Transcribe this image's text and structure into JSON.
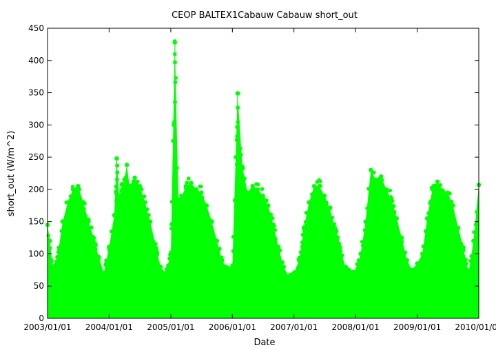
{
  "chart_data": {
    "type": "scatter",
    "title": "CEOP BALTEX1Cabauw Cabauw  short_out",
    "xlabel": "Date",
    "ylabel": "short_out (W/m^2)",
    "xlim": [
      "2003-01-01",
      "2010-01-01"
    ],
    "ylim": [
      0,
      450
    ],
    "x_ticks": [
      "2003/01/01",
      "2004/01/01",
      "2005/01/01",
      "2006/01/01",
      "2007/01/01",
      "2008/01/01",
      "2009/01/01",
      "2010/01/01"
    ],
    "y_ticks": [
      0,
      50,
      100,
      150,
      200,
      250,
      300,
      350,
      400,
      450
    ],
    "grid": false,
    "legend": "none",
    "marker_color": "#00ff00",
    "series": [
      {
        "values_description": "daily maxima of dense points; envelope shows seasonal cycle",
        "envelope": [
          {
            "x": "2003-01-01",
            "y": 145
          },
          {
            "x": "2003-01-15",
            "y": 120
          },
          {
            "x": "2003-02-01",
            "y": 80
          },
          {
            "x": "2003-03-01",
            "y": 95
          },
          {
            "x": "2003-04-01",
            "y": 150
          },
          {
            "x": "2003-05-01",
            "y": 180
          },
          {
            "x": "2003-06-01",
            "y": 200
          },
          {
            "x": "2003-07-01",
            "y": 205
          },
          {
            "x": "2003-08-01",
            "y": 180
          },
          {
            "x": "2003-09-01",
            "y": 150
          },
          {
            "x": "2003-10-01",
            "y": 125
          },
          {
            "x": "2003-11-01",
            "y": 95
          },
          {
            "x": "2003-12-01",
            "y": 70
          },
          {
            "x": "2004-01-01",
            "y": 110
          },
          {
            "x": "2004-02-01",
            "y": 160
          },
          {
            "x": "2004-02-15",
            "y": 248
          },
          {
            "x": "2004-03-01",
            "y": 190
          },
          {
            "x": "2004-04-01",
            "y": 215
          },
          {
            "x": "2004-04-15",
            "y": 238
          },
          {
            "x": "2004-05-01",
            "y": 205
          },
          {
            "x": "2004-06-01",
            "y": 218
          },
          {
            "x": "2004-07-01",
            "y": 205
          },
          {
            "x": "2004-08-01",
            "y": 180
          },
          {
            "x": "2004-09-01",
            "y": 150
          },
          {
            "x": "2004-10-01",
            "y": 115
          },
          {
            "x": "2004-11-01",
            "y": 80
          },
          {
            "x": "2004-12-01",
            "y": 70
          },
          {
            "x": "2005-01-01",
            "y": 100
          },
          {
            "x": "2005-01-25",
            "y": 428
          },
          {
            "x": "2005-02-15",
            "y": 180
          },
          {
            "x": "2005-03-01",
            "y": 185
          },
          {
            "x": "2005-04-01",
            "y": 205
          },
          {
            "x": "2005-05-01",
            "y": 210
          },
          {
            "x": "2005-06-01",
            "y": 200
          },
          {
            "x": "2005-07-01",
            "y": 195
          },
          {
            "x": "2005-08-01",
            "y": 175
          },
          {
            "x": "2005-09-01",
            "y": 150
          },
          {
            "x": "2005-10-01",
            "y": 120
          },
          {
            "x": "2005-11-01",
            "y": 90
          },
          {
            "x": "2005-12-01",
            "y": 75
          },
          {
            "x": "2006-01-01",
            "y": 80
          },
          {
            "x": "2006-02-01",
            "y": 349
          },
          {
            "x": "2006-03-01",
            "y": 235
          },
          {
            "x": "2006-04-01",
            "y": 195
          },
          {
            "x": "2006-05-01",
            "y": 205
          },
          {
            "x": "2006-06-01",
            "y": 200
          },
          {
            "x": "2006-07-01",
            "y": 190
          },
          {
            "x": "2006-08-01",
            "y": 175
          },
          {
            "x": "2006-09-01",
            "y": 145
          },
          {
            "x": "2006-10-01",
            "y": 110
          },
          {
            "x": "2006-11-01",
            "y": 80
          },
          {
            "x": "2006-12-01",
            "y": 65
          },
          {
            "x": "2007-01-01",
            "y": 70
          },
          {
            "x": "2007-02-01",
            "y": 90
          },
          {
            "x": "2007-03-01",
            "y": 140
          },
          {
            "x": "2007-04-01",
            "y": 180
          },
          {
            "x": "2007-05-01",
            "y": 205
          },
          {
            "x": "2007-06-01",
            "y": 205
          },
          {
            "x": "2007-07-01",
            "y": 190
          },
          {
            "x": "2007-08-01",
            "y": 170
          },
          {
            "x": "2007-09-01",
            "y": 140
          },
          {
            "x": "2007-10-01",
            "y": 110
          },
          {
            "x": "2007-11-01",
            "y": 80
          },
          {
            "x": "2007-12-01",
            "y": 70
          },
          {
            "x": "2008-01-01",
            "y": 72
          },
          {
            "x": "2008-02-01",
            "y": 100
          },
          {
            "x": "2008-03-01",
            "y": 150
          },
          {
            "x": "2008-04-01",
            "y": 230
          },
          {
            "x": "2008-05-01",
            "y": 215
          },
          {
            "x": "2008-06-01",
            "y": 220
          },
          {
            "x": "2008-07-01",
            "y": 200
          },
          {
            "x": "2008-08-01",
            "y": 185
          },
          {
            "x": "2008-09-01",
            "y": 155
          },
          {
            "x": "2008-10-01",
            "y": 125
          },
          {
            "x": "2008-11-01",
            "y": 90
          },
          {
            "x": "2008-12-01",
            "y": 75
          },
          {
            "x": "2009-01-01",
            "y": 85
          },
          {
            "x": "2009-02-01",
            "y": 100
          },
          {
            "x": "2009-03-01",
            "y": 155
          },
          {
            "x": "2009-04-01",
            "y": 200
          },
          {
            "x": "2009-05-01",
            "y": 212
          },
          {
            "x": "2009-06-01",
            "y": 190
          },
          {
            "x": "2009-07-01",
            "y": 195
          },
          {
            "x": "2009-08-01",
            "y": 175
          },
          {
            "x": "2009-09-01",
            "y": 140
          },
          {
            "x": "2009-10-01",
            "y": 110
          },
          {
            "x": "2009-11-01",
            "y": 70
          },
          {
            "x": "2009-12-01",
            "y": 120
          },
          {
            "x": "2010-01-01",
            "y": 207
          }
        ]
      }
    ]
  }
}
